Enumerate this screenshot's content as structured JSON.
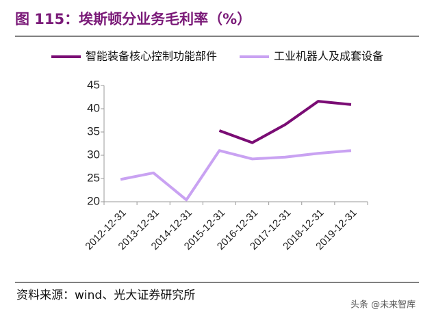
{
  "chart_data": {
    "type": "line",
    "title": "图 115：埃斯顿分业务毛利率（%）",
    "source": "资料来源：wind、光大证券研究所",
    "watermark": "头条 @未来智库",
    "categories": [
      "2012-12-31",
      "2013-12-31",
      "2014-12-31",
      "2015-12-31",
      "2016-12-31",
      "2017-12-31",
      "2018-12-31",
      "2019-12-31"
    ],
    "series": [
      {
        "name": "智能装备核心控制功能部件",
        "color": "#7a0c74",
        "values": [
          null,
          null,
          null,
          35.3,
          32.7,
          36.6,
          41.6,
          40.9
        ]
      },
      {
        "name": "工业机器人及成套设备",
        "color": "#c9a2f2",
        "values": [
          24.8,
          26.2,
          20.4,
          31.0,
          29.2,
          29.6,
          30.4,
          31.0
        ]
      }
    ],
    "ylim": [
      20,
      45
    ],
    "yticks": [
      20,
      25,
      30,
      35,
      40,
      45
    ],
    "grid": false
  }
}
